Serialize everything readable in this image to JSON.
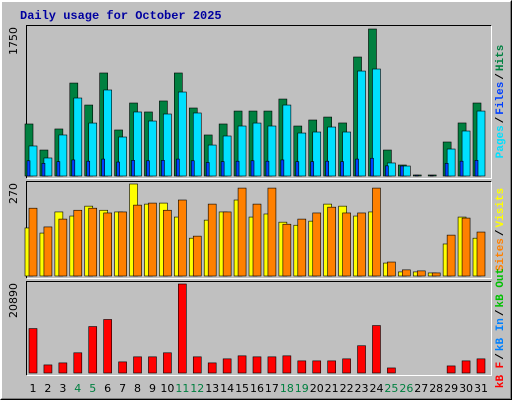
{
  "chart_data": {
    "type": "bar",
    "title": "Daily usage for October 2025",
    "categories": [
      "1",
      "2",
      "3",
      "4",
      "5",
      "6",
      "7",
      "8",
      "9",
      "10",
      "11",
      "12",
      "13",
      "14",
      "15",
      "16",
      "17",
      "18",
      "19",
      "20",
      "21",
      "22",
      "23",
      "24",
      "25",
      "26",
      "27",
      "28",
      "29",
      "30",
      "31"
    ],
    "category_colors": [
      "#000000",
      "#000000",
      "#000000",
      "#008040",
      "#008040",
      "#000000",
      "#000000",
      "#000000",
      "#000000",
      "#000000",
      "#008040",
      "#008040",
      "#000000",
      "#000000",
      "#000000",
      "#000000",
      "#000000",
      "#008040",
      "#008040",
      "#000000",
      "#000000",
      "#000000",
      "#000000",
      "#000000",
      "#008040",
      "#008040",
      "#000000",
      "#000000",
      "#000000",
      "#000000",
      "#000000"
    ],
    "legend_separator": "/",
    "panels": [
      {
        "ylim": [
          0,
          1750
        ],
        "yticks": [
          1750
        ],
        "series": [
          {
            "name": "Pages",
            "color": "#00e0ff",
            "values": [
              355,
              213,
              485,
              922,
              626,
              1017,
              461,
              757,
              650,
              733,
              993,
              745,
              366,
              473,
              591,
              626,
              591,
              839,
              508,
              520,
              579,
              520,
              1241,
              1265,
              154,
              118,
              0,
              0,
              319,
              532,
              768
            ]
          },
          {
            "name": "Files",
            "color": "#0040ff",
            "values": [
              180,
              150,
              170,
              190,
              175,
              200,
              165,
              185,
              180,
              185,
              200,
              180,
              160,
              170,
              175,
              180,
              175,
              190,
              170,
              170,
              175,
              170,
              200,
              210,
              120,
              118,
              10,
              8,
              150,
              175,
              185
            ]
          },
          {
            "name": "Hits",
            "color": "#008040",
            "values": [
              615,
              307,
              556,
              1099,
              839,
              1218,
              544,
              863,
              757,
              887,
              1218,
              804,
              485,
              615,
              768,
              768,
              768,
              910,
              591,
              662,
              697,
              627,
              1407,
              1738,
              307,
              130,
              12,
              12,
              402,
              627,
              863
            ]
          }
        ]
      },
      {
        "ylim": [
          0,
          270
        ],
        "yticks": [
          270
        ],
        "series": [
          {
            "name": "Sites",
            "color": "#ff8000",
            "values": [
              199,
              144,
              167,
              193,
              199,
              185,
              188,
              208,
              214,
              193,
              223,
              117,
              211,
              188,
              258,
              211,
              258,
              152,
              167,
              185,
              202,
              185,
              185,
              258,
              41,
              18,
              15,
              9,
              120,
              170,
              129
            ]
          },
          {
            "name": "Visits",
            "color": "#ffff00",
            "values": [
              141,
              126,
              188,
              176,
              205,
              193,
              188,
              270,
              211,
              214,
              173,
              111,
              164,
              188,
              223,
              173,
              182,
              158,
              149,
              161,
              211,
              205,
              176,
              188,
              38,
              12,
              12,
              9,
              94,
              173,
              111
            ]
          }
        ]
      },
      {
        "ylim": [
          0,
          20890
        ],
        "yticks": [
          20890
        ],
        "series": [
          {
            "name": "kB F",
            "color": "#ff0000",
            "values": [
              10430,
              1896,
              2370,
              4740,
              10903,
              12561,
              2607,
              3792,
              3792,
              4740,
              20890,
              3792,
              2370,
              3318,
              4029,
              3792,
              3792,
              4029,
              2844,
              2844,
              2844,
              3318,
              6399,
              11139,
              1185,
              0,
              0,
              0,
              1659,
              2844,
              3318
            ]
          },
          {
            "name": "kB In",
            "color": "#0080ff"
          },
          {
            "name": "kB Out",
            "color": "#00c000"
          }
        ]
      }
    ]
  }
}
